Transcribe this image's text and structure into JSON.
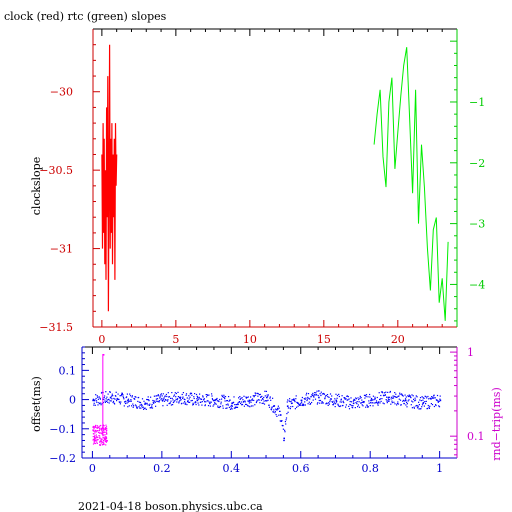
{
  "title": "clock (red) rtc (green) slopes",
  "footer": "2021-04-18 boson.physics.ubc.ca",
  "colors": {
    "clock": "#ff0000",
    "rtc": "#00ee00",
    "offset": "#0000ff",
    "rndtrip": "#ff00ff",
    "axis_top_left": "#cc0000",
    "axis_top_right": "#00cc00",
    "axis_bottom_left": "#0000cc",
    "axis_bottom_right": "#cc00cc",
    "frame": "#000000"
  },
  "chart_data": [
    {
      "type": "line",
      "ylabel": "clockslope",
      "xlim": [
        -0.6,
        24.0
      ],
      "xticks": [
        0,
        5,
        10,
        15,
        20
      ],
      "xtick_labels": [
        "0",
        "5",
        "10",
        "15",
        "20"
      ],
      "ylim_left": [
        -31.5,
        -29.6
      ],
      "yticks_left": [
        -30,
        -30.5,
        -31,
        -31.5
      ],
      "ytick_labels_left": [
        "−30",
        "−30.5",
        "−31",
        "−31.5"
      ],
      "ylim_right": [
        -4.7,
        0.2
      ],
      "yticks_right": [
        -1,
        -2,
        -3,
        -4
      ],
      "ytick_labels_right": [
        "−1",
        "−2",
        "−3",
        "−4"
      ],
      "series": [
        {
          "axis": "left",
          "color_key": "clock",
          "x": [
            0.0,
            0.04,
            0.08,
            0.12,
            0.16,
            0.2,
            0.24,
            0.28,
            0.32,
            0.36,
            0.4,
            0.44,
            0.48,
            0.52,
            0.56,
            0.6,
            0.64,
            0.68,
            0.72,
            0.76,
            0.8,
            0.84,
            0.88,
            0.92,
            0.96,
            1.0
          ],
          "y": [
            -30.4,
            -31.0,
            -30.2,
            -30.9,
            -30.3,
            -31.1,
            -30.5,
            -31.2,
            -30.1,
            -30.8,
            -29.9,
            -31.4,
            -30.6,
            -29.7,
            -31.0,
            -30.3,
            -30.9,
            -30.2,
            -31.1,
            -30.4,
            -30.8,
            -30.3,
            -31.2,
            -30.2,
            -30.6,
            -30.4
          ]
        },
        {
          "axis": "right",
          "color_key": "rtc",
          "x": [
            18.4,
            18.6,
            18.8,
            19.0,
            19.2,
            19.4,
            19.6,
            19.8,
            20.0,
            20.2,
            20.4,
            20.6,
            20.8,
            21.0,
            21.2,
            21.4,
            21.6,
            21.8,
            22.0,
            22.2,
            22.4,
            22.6,
            22.8,
            23.0,
            23.2,
            23.4
          ],
          "y": [
            -1.7,
            -1.2,
            -0.8,
            -1.9,
            -2.4,
            -1.0,
            -0.6,
            -2.1,
            -1.5,
            -0.9,
            -0.4,
            -0.1,
            -1.3,
            -2.5,
            -0.8,
            -3.0,
            -1.7,
            -2.4,
            -3.4,
            -4.1,
            -3.1,
            -2.9,
            -4.3,
            -3.9,
            -4.6,
            -3.3
          ]
        }
      ]
    },
    {
      "type": "scatter",
      "ylabel": "offset(ms)",
      "ylabel_right": "rnd−trip(ms)",
      "xlim": [
        -0.03,
        1.05
      ],
      "xticks": [
        0,
        0.2,
        0.4,
        0.6,
        0.8,
        1
      ],
      "xtick_labels": [
        "0",
        "0.2",
        "0.4",
        "0.6",
        "0.8",
        "1"
      ],
      "ylim_left": [
        -0.2,
        0.18
      ],
      "yticks_left": [
        0.1,
        0,
        -0.1,
        -0.2
      ],
      "ytick_labels_left": [
        "0.1",
        "0",
        "−0.1",
        "−0.2"
      ],
      "ylim_right_log": [
        0.055,
        1.15
      ],
      "yticks_right": [
        1,
        0.1
      ],
      "ytick_labels_right": [
        "1",
        "0.1"
      ],
      "series": [
        {
          "axis": "left",
          "color_key": "offset",
          "x": [
            0.0,
            0.05,
            0.1,
            0.15,
            0.2,
            0.25,
            0.3,
            0.35,
            0.4,
            0.45,
            0.5,
            0.52,
            0.54,
            0.55,
            0.56,
            0.6,
            0.65,
            0.7,
            0.75,
            0.8,
            0.85,
            0.9,
            0.95,
            1.0
          ],
          "y": [
            0.0,
            0.01,
            0.0,
            -0.01,
            0.0,
            0.01,
            0.0,
            0.0,
            -0.01,
            0.0,
            0.01,
            -0.02,
            -0.05,
            -0.13,
            -0.02,
            0.0,
            0.01,
            0.0,
            -0.01,
            0.0,
            0.01,
            0.0,
            -0.01,
            0.0
          ]
        },
        {
          "axis": "right",
          "color_key": "rndtrip",
          "x": [
            0.0,
            0.005,
            0.01,
            0.015,
            0.02,
            0.025,
            0.03,
            0.035,
            0.04
          ],
          "y": [
            0.12,
            0.09,
            0.1,
            0.13,
            0.08,
            0.11,
            0.95,
            0.1,
            0.09
          ]
        }
      ]
    }
  ]
}
